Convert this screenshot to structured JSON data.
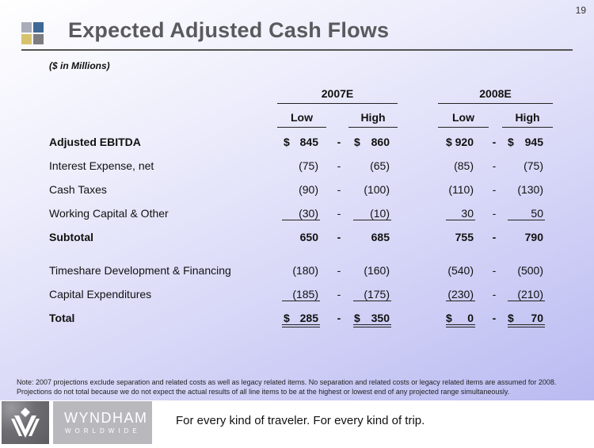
{
  "page_number": "19",
  "title": "Expected Adjusted Cash Flows",
  "units_note": "($ in Millions)",
  "columns": {
    "years": [
      "2007E",
      "2008E"
    ],
    "subheaders": [
      "Low",
      "High",
      "Low",
      "High"
    ],
    "range_separator": "-",
    "currency_symbol": "$"
  },
  "rows": [
    {
      "label": "Adjusted EBITDA",
      "bold": true,
      "values": [
        "845",
        "860",
        "920",
        "945"
      ],
      "dollar": true
    },
    {
      "label": "Interest Expense, net",
      "bold": false,
      "values": [
        "(75)",
        "(65)",
        "(85)",
        "(75)"
      ]
    },
    {
      "label": "Cash Taxes",
      "bold": false,
      "values": [
        "(90)",
        "(100)",
        "(110)",
        "(130)"
      ]
    },
    {
      "label": "Working Capital & Other",
      "bold": false,
      "values": [
        "(30)",
        "(10)",
        "30",
        "50"
      ],
      "underline": true
    },
    {
      "label": "Subtotal",
      "bold": true,
      "values": [
        "650",
        "685",
        "755",
        "790"
      ]
    },
    {
      "label": "Timeshare Development & Financing",
      "bold": false,
      "values": [
        "(180)",
        "(160)",
        "(540)",
        "(500)"
      ]
    },
    {
      "label": "Capital Expenditures",
      "bold": false,
      "values": [
        "(185)",
        "(175)",
        "(230)",
        "(210)"
      ],
      "underline": true
    },
    {
      "label": "Total",
      "bold": true,
      "values": [
        "285",
        "350",
        "0",
        "70"
      ],
      "dollar": true,
      "double_underline": true
    }
  ],
  "notes": [
    "Note: 2007 projections exclude separation and related costs as well as legacy related items.  No separation and related costs or legacy related items are assumed for 2008.",
    "Projections do not total because we do not expect the actual results of all line items to be at the highest or lowest end of any projected range simultaneously."
  ],
  "footer": {
    "brand_name": "WYNDHAM",
    "brand_sub": "WORLDWIDE",
    "tagline": "For every kind of traveler. For every kind of trip."
  },
  "colors": {
    "title": "#5a5a5e",
    "logo_gray": "#a9adb8",
    "logo_blue": "#3e6896",
    "logo_gold": "#d7c36f",
    "logo_dark": "#7d7d7f",
    "background_end": "#babaf2"
  }
}
